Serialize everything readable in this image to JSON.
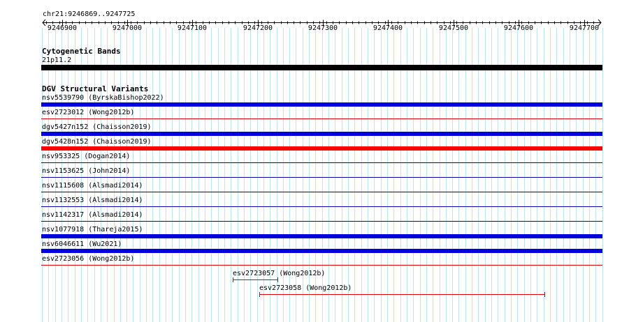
{
  "ruler": {
    "region": "chr21:9246869..9247725",
    "ticks": [
      "9246900",
      "9247000",
      "9247100",
      "9247200",
      "9247300",
      "9247400",
      "9247500",
      "9247600",
      "9247700"
    ]
  },
  "cytoband": {
    "title": "Cytogenetic Bands",
    "band_label": "21p11.2",
    "color": "#000000"
  },
  "dgv": {
    "title": "DGV Structural Variants",
    "colors": {
      "loss": "#ff0000",
      "gain": "#0000cc",
      "blue_line": "#000099"
    },
    "features": [
      {
        "label": "nsv5539790 (ByrskaBishop2022)",
        "style": "thick",
        "color": "#0000dd"
      },
      {
        "label": "esv2723012 (Wong2012b)",
        "style": "thin",
        "color": "#dd0000"
      },
      {
        "label": "dgv5427n152 (Chaisson2019)",
        "style": "thick",
        "color": "#0000dd"
      },
      {
        "label": "dgv5428n152 (Chaisson2019)",
        "style": "thick",
        "color": "#ff0000"
      },
      {
        "label": "nsv953325 (Dogan2014)",
        "style": "thin",
        "color": "#0000aa"
      },
      {
        "label": "nsv1153625 (John2014)",
        "style": "thin",
        "color": "#0000aa"
      },
      {
        "label": "nsv1115608 (Alsmadi2014)",
        "style": "thin",
        "color": "#0000aa"
      },
      {
        "label": "nsv1132553 (Alsmadi2014)",
        "style": "thin",
        "color": "#0000aa"
      },
      {
        "label": "nsv1142317 (Alsmadi2014)",
        "style": "thin",
        "color": "#0000aa"
      },
      {
        "label": "nsv1077918 (Thareja2015)",
        "style": "thick",
        "color": "#0000dd"
      },
      {
        "label": "nsv6046611 (Wu2021)",
        "style": "thick",
        "color": "#0000dd"
      },
      {
        "label": "esv2723056 (Wong2012b)",
        "style": "thin",
        "color": "#dd0000"
      }
    ],
    "partial_features": [
      {
        "label": "esv2723057 (Wong2012b)",
        "color": "#dd0000"
      },
      {
        "label": "esv2723058 (Wong2012b)",
        "color": "#dd0000"
      }
    ]
  }
}
